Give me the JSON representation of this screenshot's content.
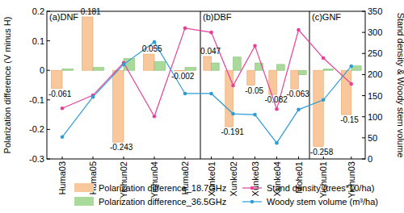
{
  "chart_data": {
    "type": "bar",
    "categories": [
      "Huma03",
      "Huma05",
      "Yichun02",
      "Yichun04",
      "Huma02",
      "Xunke01",
      "Xunke02",
      "Xunke03",
      "Xunke04",
      "Mohe01",
      "Yichun01",
      "Yichun03"
    ],
    "panels": [
      {
        "title": "(a)DNF",
        "first": "Huma03"
      },
      {
        "title": "(b)DBF",
        "first": "Xunke01"
      },
      {
        "title": "(c)GNF",
        "first": "Yichun01"
      }
    ],
    "y_label": "Polarization difference (V minus H)",
    "y2_label": "Stand density & Woody stem volume",
    "ylim": [
      -0.3,
      0.2
    ],
    "yticks": [
      -0.3,
      -0.2,
      -0.1,
      0,
      0.1,
      0.2
    ],
    "y2lim": [
      0,
      350
    ],
    "y2ticks": [
      0,
      50,
      100,
      150,
      200,
      250,
      300,
      350
    ],
    "grid": false,
    "legend": "bottom",
    "series": [
      {
        "name": "Polarization difference_18.7GHz",
        "type": "bar",
        "color": "#f8c79b",
        "data_labels": true,
        "values": [
          -0.061,
          0.181,
          -0.243,
          0.055,
          -0.002,
          0.047,
          -0.191,
          -0.05,
          -0.082,
          -0.063,
          -0.258,
          -0.15
        ]
      },
      {
        "name": "Polarization difference_36.5GHz",
        "type": "bar",
        "color": "#a9d99b",
        "values": [
          0.005,
          0.01,
          0.04,
          0.03,
          0.01,
          0.025,
          0.045,
          0.025,
          0.02,
          -0.015,
          0.005,
          0.015
        ]
      },
      {
        "name": "Stand density (trees*10/ha)",
        "type": "line",
        "axis": "y2",
        "color": "#e8409a",
        "marker": "circle",
        "line_style": "solid",
        "values": [
          120,
          151,
          228,
          101,
          310,
          300,
          174,
          268,
          118,
          306,
          239,
          178
        ]
      },
      {
        "name": "Woody stem volume (m³/ha)",
        "type": "line",
        "axis": "y2",
        "color": "#2f9bd9",
        "marker": "circle",
        "line_style": "solid",
        "values": [
          52,
          147,
          224,
          277,
          155,
          155,
          107,
          105,
          38,
          117,
          140,
          220
        ]
      }
    ]
  }
}
